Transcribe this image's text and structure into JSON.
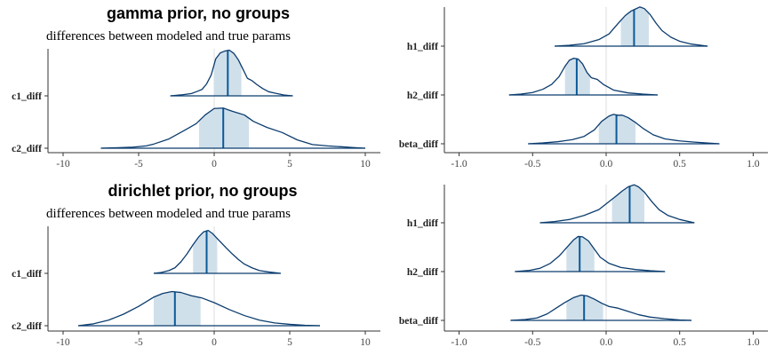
{
  "colors": {
    "line": "#0b3c6e",
    "fill": "#d0e0eb",
    "median": "#0a5a99",
    "zero": "#dddddd",
    "axis": "#333333"
  },
  "chart_data": [
    {
      "type": "area",
      "title": "gamma prior, no groups",
      "subtitle": "differences between modeled and true params",
      "xlim": [
        -11,
        11
      ],
      "xticks": [
        -10,
        -5,
        0,
        5,
        10
      ],
      "xticklabels": [
        "-10",
        "-5",
        "0",
        "5",
        "10"
      ],
      "ref_line_x": 0,
      "series": [
        {
          "name": "c1_diff",
          "median": 0.9,
          "interval": [
            0.0,
            1.8
          ],
          "range": [
            -2.9,
            5.2
          ],
          "density": [
            [
              -2.9,
              0.0
            ],
            [
              -2.2,
              0.02
            ],
            [
              -1.5,
              0.05
            ],
            [
              -1.1,
              0.1
            ],
            [
              -0.8,
              0.14
            ],
            [
              -0.5,
              0.26
            ],
            [
              -0.2,
              0.45
            ],
            [
              0.1,
              0.8
            ],
            [
              0.4,
              0.93
            ],
            [
              0.7,
              0.97
            ],
            [
              1.0,
              0.99
            ],
            [
              1.3,
              0.92
            ],
            [
              1.6,
              0.78
            ],
            [
              1.9,
              0.58
            ],
            [
              2.2,
              0.38
            ],
            [
              2.5,
              0.33
            ],
            [
              2.8,
              0.25
            ],
            [
              3.2,
              0.16
            ],
            [
              3.6,
              0.09
            ],
            [
              4.0,
              0.06
            ],
            [
              4.6,
              0.02
            ],
            [
              5.2,
              0.0
            ]
          ]
        },
        {
          "name": "c2_diff",
          "median": 0.6,
          "interval": [
            -1.0,
            2.3
          ],
          "range": [
            -7.5,
            10.0
          ],
          "density": [
            [
              -7.5,
              0.0
            ],
            [
              -6.5,
              0.01
            ],
            [
              -5.5,
              0.02
            ],
            [
              -4.5,
              0.05
            ],
            [
              -4.0,
              0.09
            ],
            [
              -3.0,
              0.2
            ],
            [
              -2.0,
              0.38
            ],
            [
              -1.2,
              0.53
            ],
            [
              -0.6,
              0.72
            ],
            [
              0.0,
              0.86
            ],
            [
              0.6,
              0.87
            ],
            [
              1.2,
              0.8
            ],
            [
              2.0,
              0.72
            ],
            [
              2.6,
              0.58
            ],
            [
              3.5,
              0.45
            ],
            [
              4.5,
              0.34
            ],
            [
              5.5,
              0.18
            ],
            [
              6.5,
              0.08
            ],
            [
              7.5,
              0.05
            ],
            [
              8.5,
              0.03
            ],
            [
              9.2,
              0.015
            ],
            [
              10.0,
              0.0
            ]
          ]
        }
      ]
    },
    {
      "type": "area",
      "xlim": [
        -1.1,
        1.1
      ],
      "xticks": [
        -1.0,
        -0.5,
        0.0,
        0.5,
        1.0
      ],
      "xticklabels": [
        "-1.0",
        "-0.5",
        "0.0",
        "0.5",
        "1.0"
      ],
      "ref_line_x": 0,
      "series": [
        {
          "name": "h1_diff",
          "median": 0.19,
          "interval": [
            0.1,
            0.29
          ],
          "range": [
            -0.35,
            0.69
          ],
          "density": [
            [
              -0.35,
              0.0
            ],
            [
              -0.25,
              0.02
            ],
            [
              -0.15,
              0.06
            ],
            [
              -0.05,
              0.16
            ],
            [
              0.02,
              0.3
            ],
            [
              0.08,
              0.55
            ],
            [
              0.13,
              0.75
            ],
            [
              0.17,
              0.86
            ],
            [
              0.2,
              0.91
            ],
            [
              0.23,
              0.96
            ],
            [
              0.26,
              0.92
            ],
            [
              0.3,
              0.77
            ],
            [
              0.34,
              0.56
            ],
            [
              0.38,
              0.38
            ],
            [
              0.44,
              0.22
            ],
            [
              0.5,
              0.12
            ],
            [
              0.58,
              0.05
            ],
            [
              0.69,
              0.0
            ]
          ]
        },
        {
          "name": "h2_diff",
          "median": -0.2,
          "interval": [
            -0.28,
            -0.11
          ],
          "range": [
            -0.66,
            0.35
          ],
          "density": [
            [
              -0.66,
              0.0
            ],
            [
              -0.58,
              0.02
            ],
            [
              -0.5,
              0.06
            ],
            [
              -0.43,
              0.14
            ],
            [
              -0.37,
              0.26
            ],
            [
              -0.32,
              0.45
            ],
            [
              -0.28,
              0.7
            ],
            [
              -0.25,
              0.85
            ],
            [
              -0.22,
              0.9
            ],
            [
              -0.19,
              0.88
            ],
            [
              -0.16,
              0.76
            ],
            [
              -0.13,
              0.55
            ],
            [
              -0.1,
              0.42
            ],
            [
              -0.06,
              0.38
            ],
            [
              -0.02,
              0.26
            ],
            [
              0.05,
              0.12
            ],
            [
              0.15,
              0.05
            ],
            [
              0.25,
              0.02
            ],
            [
              0.35,
              0.0
            ]
          ]
        },
        {
          "name": "beta_diff",
          "median": 0.07,
          "interval": [
            -0.05,
            0.2
          ],
          "range": [
            -0.53,
            0.77
          ],
          "density": [
            [
              -0.53,
              0.0
            ],
            [
              -0.43,
              0.02
            ],
            [
              -0.33,
              0.05
            ],
            [
              -0.23,
              0.1
            ],
            [
              -0.15,
              0.18
            ],
            [
              -0.08,
              0.34
            ],
            [
              -0.03,
              0.55
            ],
            [
              0.02,
              0.68
            ],
            [
              0.05,
              0.72
            ],
            [
              0.08,
              0.7
            ],
            [
              0.11,
              0.7
            ],
            [
              0.15,
              0.64
            ],
            [
              0.2,
              0.52
            ],
            [
              0.25,
              0.38
            ],
            [
              0.32,
              0.22
            ],
            [
              0.4,
              0.12
            ],
            [
              0.5,
              0.07
            ],
            [
              0.6,
              0.04
            ],
            [
              0.68,
              0.02
            ],
            [
              0.77,
              0.0
            ]
          ]
        }
      ]
    },
    {
      "type": "area",
      "title": "dirichlet prior, no groups",
      "subtitle": "differences between modeled and true params",
      "xlim": [
        -11,
        11
      ],
      "xticks": [
        -10,
        -5,
        0,
        5,
        10
      ],
      "xticklabels": [
        "-10",
        "-5",
        "0",
        "5",
        "10"
      ],
      "ref_line_x": 0,
      "series": [
        {
          "name": "c1_diff",
          "median": -0.5,
          "interval": [
            -1.4,
            0.2
          ],
          "range": [
            -4.0,
            4.4
          ],
          "density": [
            [
              -4.0,
              0.0
            ],
            [
              -3.5,
              0.02
            ],
            [
              -3.0,
              0.06
            ],
            [
              -2.6,
              0.12
            ],
            [
              -2.2,
              0.25
            ],
            [
              -1.8,
              0.42
            ],
            [
              -1.4,
              0.62
            ],
            [
              -1.0,
              0.8
            ],
            [
              -0.7,
              0.9
            ],
            [
              -0.4,
              0.93
            ],
            [
              -0.1,
              0.86
            ],
            [
              0.3,
              0.72
            ],
            [
              0.8,
              0.55
            ],
            [
              1.2,
              0.42
            ],
            [
              1.6,
              0.3
            ],
            [
              2.0,
              0.2
            ],
            [
              2.5,
              0.12
            ],
            [
              3.0,
              0.06
            ],
            [
              3.6,
              0.03
            ],
            [
              4.4,
              0.0
            ]
          ]
        },
        {
          "name": "c2_diff",
          "median": -2.6,
          "interval": [
            -4.0,
            -0.9
          ],
          "range": [
            -9.0,
            7.0
          ],
          "density": [
            [
              -9.0,
              0.0
            ],
            [
              -8.0,
              0.04
            ],
            [
              -7.0,
              0.12
            ],
            [
              -6.0,
              0.25
            ],
            [
              -5.0,
              0.42
            ],
            [
              -4.0,
              0.62
            ],
            [
              -3.4,
              0.7
            ],
            [
              -2.8,
              0.74
            ],
            [
              -2.2,
              0.72
            ],
            [
              -1.5,
              0.65
            ],
            [
              -0.8,
              0.6
            ],
            [
              0.0,
              0.5
            ],
            [
              1.0,
              0.35
            ],
            [
              2.0,
              0.22
            ],
            [
              3.0,
              0.12
            ],
            [
              4.0,
              0.06
            ],
            [
              5.0,
              0.03
            ],
            [
              6.0,
              0.01
            ],
            [
              7.0,
              0.0
            ]
          ]
        }
      ]
    },
    {
      "type": "area",
      "xlim": [
        -1.1,
        1.1
      ],
      "xticks": [
        -1.0,
        -0.5,
        0.0,
        0.5,
        1.0
      ],
      "xticklabels": [
        "-1.0",
        "-0.5",
        "0.0",
        "0.5",
        "1.0"
      ],
      "ref_line_x": 0,
      "series": [
        {
          "name": "h1_diff",
          "median": 0.16,
          "interval": [
            0.04,
            0.26
          ],
          "range": [
            -0.45,
            0.6
          ],
          "density": [
            [
              -0.45,
              0.0
            ],
            [
              -0.35,
              0.03
            ],
            [
              -0.25,
              0.08
            ],
            [
              -0.15,
              0.18
            ],
            [
              -0.05,
              0.32
            ],
            [
              0.02,
              0.52
            ],
            [
              0.07,
              0.66
            ],
            [
              0.11,
              0.78
            ],
            [
              0.15,
              0.88
            ],
            [
              0.19,
              0.93
            ],
            [
              0.22,
              0.88
            ],
            [
              0.26,
              0.75
            ],
            [
              0.31,
              0.52
            ],
            [
              0.36,
              0.32
            ],
            [
              0.42,
              0.18
            ],
            [
              0.5,
              0.08
            ],
            [
              0.6,
              0.0
            ]
          ]
        },
        {
          "name": "h2_diff",
          "median": -0.18,
          "interval": [
            -0.27,
            -0.08
          ],
          "range": [
            -0.62,
            0.4
          ],
          "density": [
            [
              -0.62,
              0.0
            ],
            [
              -0.52,
              0.03
            ],
            [
              -0.45,
              0.08
            ],
            [
              -0.38,
              0.2
            ],
            [
              -0.32,
              0.38
            ],
            [
              -0.27,
              0.58
            ],
            [
              -0.22,
              0.78
            ],
            [
              -0.19,
              0.86
            ],
            [
              -0.16,
              0.85
            ],
            [
              -0.12,
              0.75
            ],
            [
              -0.08,
              0.55
            ],
            [
              -0.04,
              0.35
            ],
            [
              0.02,
              0.2
            ],
            [
              0.1,
              0.1
            ],
            [
              0.2,
              0.05
            ],
            [
              0.3,
              0.02
            ],
            [
              0.4,
              0.0
            ]
          ]
        },
        {
          "name": "beta_diff",
          "median": -0.15,
          "interval": [
            -0.27,
            -0.02
          ],
          "range": [
            -0.65,
            0.58
          ],
          "density": [
            [
              -0.65,
              0.0
            ],
            [
              -0.55,
              0.02
            ],
            [
              -0.47,
              0.06
            ],
            [
              -0.4,
              0.16
            ],
            [
              -0.34,
              0.3
            ],
            [
              -0.28,
              0.44
            ],
            [
              -0.22,
              0.56
            ],
            [
              -0.17,
              0.62
            ],
            [
              -0.13,
              0.6
            ],
            [
              -0.08,
              0.52
            ],
            [
              -0.03,
              0.42
            ],
            [
              0.02,
              0.34
            ],
            [
              0.08,
              0.3
            ],
            [
              0.15,
              0.22
            ],
            [
              0.22,
              0.14
            ],
            [
              0.3,
              0.08
            ],
            [
              0.4,
              0.04
            ],
            [
              0.5,
              0.01
            ],
            [
              0.58,
              0.0
            ]
          ]
        }
      ]
    }
  ]
}
